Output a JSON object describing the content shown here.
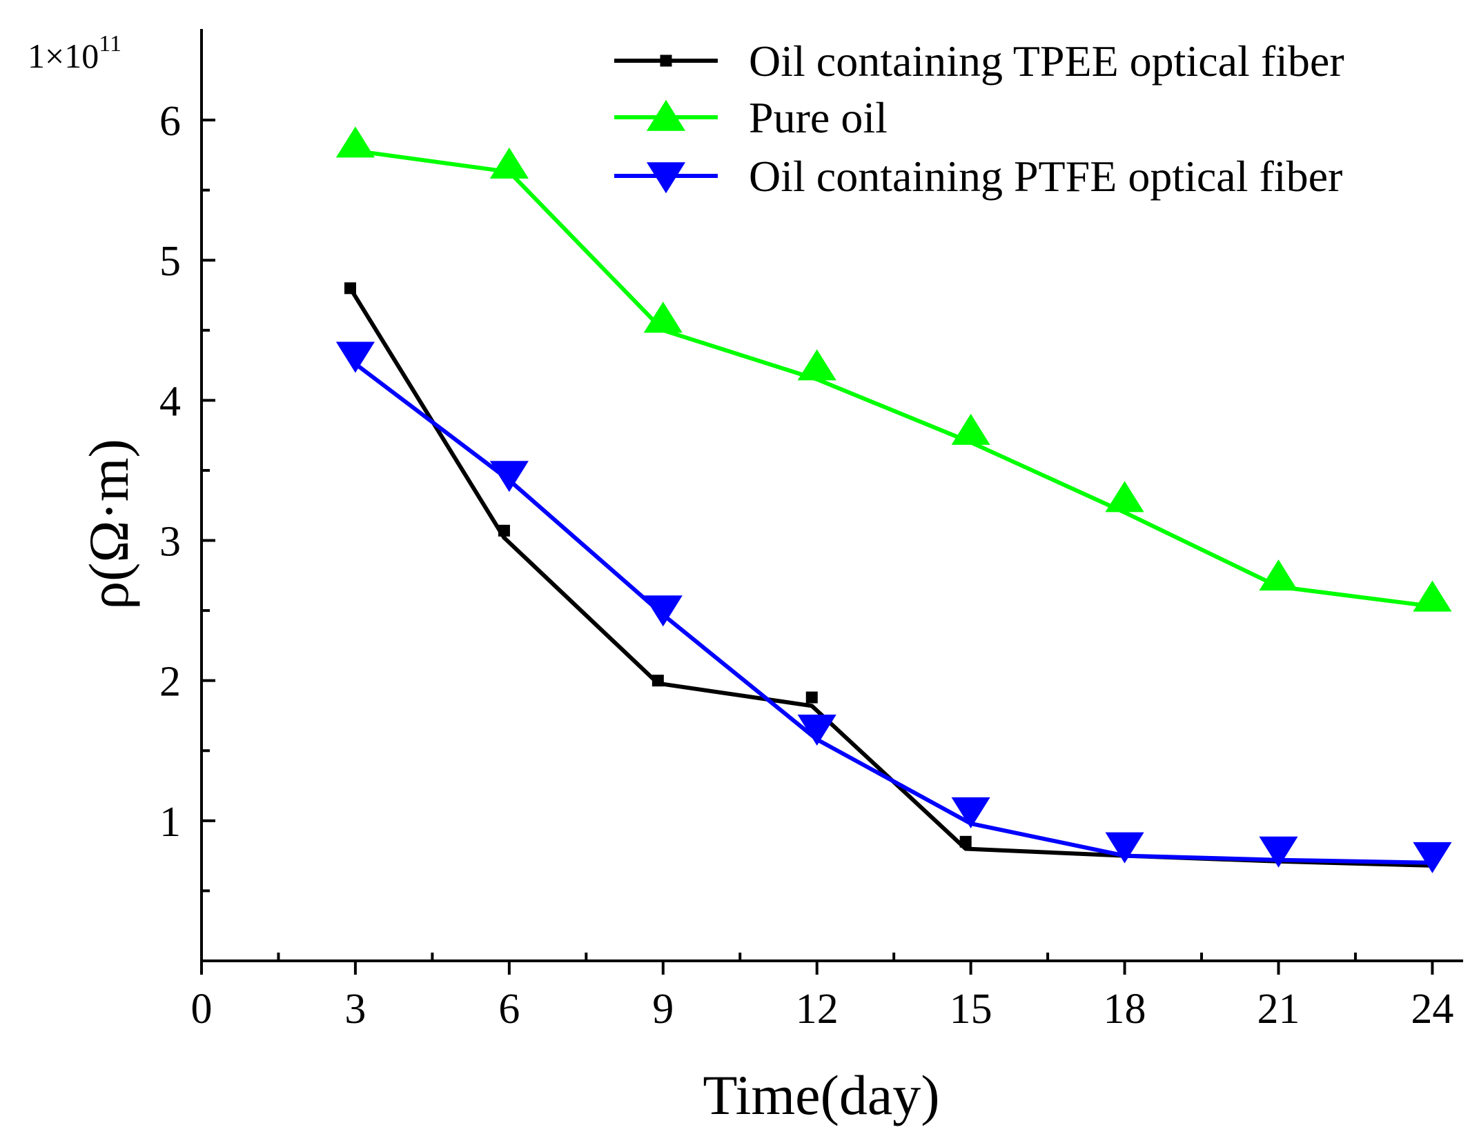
{
  "chart_data": {
    "type": "line",
    "title": "",
    "xlabel": "Time(day)",
    "ylabel": "ρ(Ω·m)",
    "multiplier": {
      "base": "1×10",
      "exponent": "11"
    },
    "xlim": [
      0,
      24.6
    ],
    "ylim": [
      0,
      6.65
    ],
    "xticks": [
      0,
      3,
      6,
      9,
      12,
      15,
      18,
      21,
      24
    ],
    "xtick_labels": [
      "0",
      "3",
      "6",
      "9",
      "12",
      "15",
      "18",
      "21",
      "24"
    ],
    "xminor": [
      1.5,
      4.5,
      7.5,
      10.5,
      13.5,
      16.5,
      19.5,
      22.5
    ],
    "yticks": [
      1,
      2,
      3,
      4,
      5,
      6
    ],
    "ytick_labels": [
      "1",
      "2",
      "3",
      "4",
      "5",
      "6"
    ],
    "yminor": [
      0.5,
      1.5,
      2.5,
      3.5,
      4.5,
      5.5
    ],
    "legend_position": "top-right",
    "series": [
      {
        "name": "Oil containing TPEE optical fiber",
        "color": "#000000",
        "marker": "square",
        "points": [
          [
            2.9,
            4.8
          ],
          [
            5.9,
            3.07
          ],
          [
            8.9,
            2.0
          ],
          [
            11.9,
            1.88
          ],
          [
            14.9,
            0.85
          ]
        ],
        "line": [
          [
            2.9,
            4.8
          ],
          [
            5.9,
            3.02
          ],
          [
            8.9,
            1.98
          ],
          [
            11.9,
            1.82
          ],
          [
            14.9,
            0.8
          ],
          [
            18,
            0.75
          ],
          [
            21,
            0.71
          ],
          [
            24,
            0.68
          ]
        ]
      },
      {
        "name": "Pure oil",
        "color": "#00ff00",
        "marker": "triangle-up",
        "points": [
          [
            3,
            5.83
          ],
          [
            6,
            5.68
          ],
          [
            9,
            4.58
          ],
          [
            12,
            4.24
          ],
          [
            15,
            3.78
          ],
          [
            18,
            3.3
          ],
          [
            21,
            2.74
          ],
          [
            24,
            2.59
          ]
        ],
        "line": [
          [
            3,
            5.78
          ],
          [
            6,
            5.63
          ],
          [
            9,
            4.5
          ],
          [
            12,
            4.15
          ],
          [
            15,
            3.7
          ],
          [
            18,
            3.2
          ],
          [
            21,
            2.67
          ],
          [
            24,
            2.53
          ]
        ]
      },
      {
        "name": "Oil containing PTFE optical fiber",
        "color": "#0000ff",
        "marker": "triangle-down",
        "points": [
          [
            3,
            4.32
          ],
          [
            6,
            3.47
          ],
          [
            9,
            2.51
          ],
          [
            12,
            1.66
          ],
          [
            15,
            1.07
          ],
          [
            18,
            0.82
          ],
          [
            21,
            0.79
          ],
          [
            24,
            0.75
          ]
        ],
        "line": [
          [
            3,
            4.26
          ],
          [
            6,
            3.43
          ],
          [
            9,
            2.47
          ],
          [
            12,
            1.58
          ],
          [
            15,
            0.98
          ],
          [
            18,
            0.75
          ],
          [
            21,
            0.72
          ],
          [
            24,
            0.7
          ]
        ]
      }
    ]
  }
}
